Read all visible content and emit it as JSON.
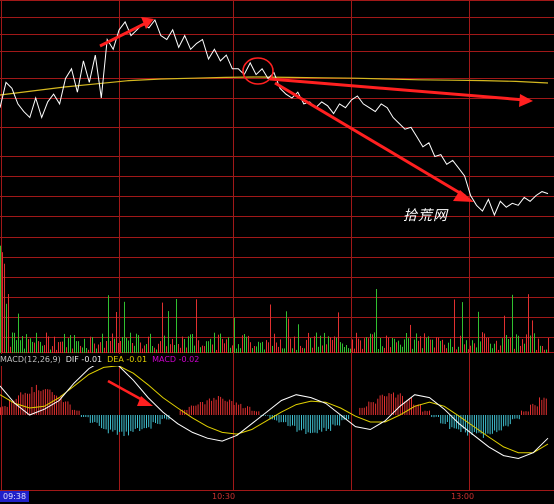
{
  "indicator": {
    "name": "MACD(12,26,9)",
    "dif": "DIF -0.01",
    "dea": "DEA -0.01",
    "macd": "MACD -0.02"
  },
  "time_axis": [
    "09:38",
    "10:30",
    "13:00"
  ],
  "watermark": "拾荒网",
  "colors": {
    "background": "#000000",
    "grid": "#a01818",
    "price_line": "#ffffff",
    "avg_line": "#d4b820",
    "annotation": "#ff2020",
    "volume_up": "#e03030",
    "volume_down": "#30c030",
    "macd_up": "#e03030",
    "macd_down": "#40c0d0",
    "dea_line": "#e0d000"
  },
  "chart_data": {
    "type": "line",
    "price_series": [
      0.55,
      0.68,
      0.65,
      0.57,
      0.53,
      0.5,
      0.6,
      0.5,
      0.58,
      0.62,
      0.57,
      0.7,
      0.75,
      0.63,
      0.79,
      0.68,
      0.82,
      0.6,
      0.9,
      0.85,
      0.95,
      0.99,
      0.92,
      0.95,
      0.98,
      0.96,
      1.0,
      0.92,
      0.9,
      0.95,
      0.86,
      0.92,
      0.85,
      0.88,
      0.9,
      0.8,
      0.85,
      0.79,
      0.82,
      0.75,
      0.75,
      0.72,
      0.78,
      0.72,
      0.75,
      0.7,
      0.73,
      0.65,
      0.62,
      0.6,
      0.63,
      0.57,
      0.58,
      0.55,
      0.58,
      0.56,
      0.52,
      0.57,
      0.55,
      0.59,
      0.61,
      0.57,
      0.55,
      0.53,
      0.57,
      0.55,
      0.5,
      0.47,
      0.44,
      0.45,
      0.4,
      0.35,
      0.37,
      0.3,
      0.31,
      0.26,
      0.28,
      0.24,
      0.2,
      0.1,
      0.05,
      0.02,
      0.08,
      0.0,
      0.07,
      0.04,
      0.06,
      0.05,
      0.09,
      0.07,
      0.1,
      0.12,
      0.11
    ],
    "avg_series": [
      0.4,
      0.45,
      0.5,
      0.54,
      0.58,
      0.6,
      0.61,
      0.62,
      0.625,
      0.62,
      0.615,
      0.61,
      0.6,
      0.59,
      0.585,
      0.58,
      0.57,
      0.55
    ],
    "macd_bars": [
      0.2,
      0.35,
      0.5,
      0.62,
      0.7,
      0.6,
      0.45,
      0.3,
      0.12,
      -0.05,
      -0.2,
      -0.32,
      -0.42,
      -0.48,
      -0.45,
      -0.38,
      -0.3,
      -0.2,
      -0.1,
      0.0,
      0.12,
      0.22,
      0.3,
      0.38,
      0.42,
      0.35,
      0.28,
      0.2,
      0.1,
      -0.02,
      -0.12,
      -0.2,
      -0.3,
      -0.38,
      -0.42,
      -0.4,
      -0.35,
      -0.25,
      -0.12,
      0.0,
      0.2,
      0.32,
      0.45,
      0.55,
      0.48,
      0.38,
      0.25,
      0.1,
      -0.05,
      -0.2,
      -0.32,
      -0.4,
      -0.48,
      -0.5,
      -0.45,
      -0.38,
      -0.25,
      -0.1,
      0.1,
      0.25,
      0.4
    ],
    "dif_series": [
      0.5,
      0.2,
      0.0,
      0.1,
      0.25,
      0.55,
      0.8,
      0.95,
      0.85,
      0.6,
      0.3,
      0.05,
      -0.15,
      -0.3,
      -0.4,
      -0.45,
      -0.35,
      -0.15,
      0.05,
      0.25,
      0.35,
      0.3,
      0.2,
      0.0,
      -0.2,
      -0.25,
      -0.1,
      0.15,
      0.35,
      0.3,
      0.1,
      -0.15,
      -0.35,
      -0.55,
      -0.7,
      -0.75,
      -0.65,
      -0.4
    ],
    "dea_series": [
      0.35,
      0.2,
      0.12,
      0.15,
      0.3,
      0.5,
      0.7,
      0.82,
      0.85,
      0.72,
      0.52,
      0.3,
      0.12,
      -0.05,
      -0.2,
      -0.3,
      -0.33,
      -0.25,
      -0.1,
      0.05,
      0.18,
      0.24,
      0.22,
      0.12,
      -0.02,
      -0.12,
      -0.12,
      0.0,
      0.15,
      0.22,
      0.15,
      -0.02,
      -0.2,
      -0.38,
      -0.55,
      -0.65,
      -0.65,
      -0.5
    ]
  }
}
